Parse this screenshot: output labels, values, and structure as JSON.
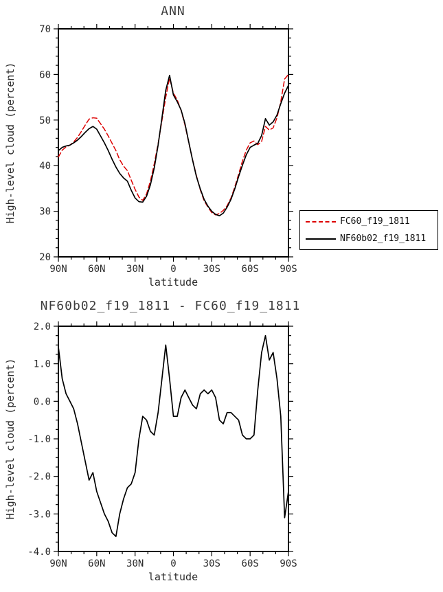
{
  "colors": {
    "frame": "#000000",
    "title_text": "#3d3d3d",
    "tick_text": "#2b2b2b",
    "series_red": "#dd0000",
    "series_black": "#000000"
  },
  "chart_data": [
    {
      "type": "line",
      "title": "ANN",
      "xlabel": "latitude",
      "ylabel": "High-level cloud (percent)",
      "xlim": [
        90,
        -90
      ],
      "ylim": [
        20,
        70
      ],
      "x_major_ticks": {
        "values": [
          90,
          60,
          30,
          0,
          -30,
          -60,
          -90
        ],
        "labels": [
          "90N",
          "60N",
          "30N",
          "0",
          "30S",
          "60S",
          "90S"
        ]
      },
      "x_minor_step": 10,
      "y_major_ticks": {
        "values": [
          20,
          30,
          40,
          50,
          60,
          70
        ],
        "labels": [
          "20",
          "30",
          "40",
          "50",
          "60",
          "70"
        ]
      },
      "y_minor_step": 2,
      "x": [
        90,
        87,
        84,
        81,
        78,
        75,
        72,
        69,
        66,
        63,
        60,
        57,
        54,
        51,
        48,
        45,
        42,
        39,
        36,
        33,
        30,
        27,
        24,
        21,
        18,
        15,
        12,
        9,
        6,
        3,
        0,
        -3,
        -6,
        -9,
        -12,
        -15,
        -18,
        -21,
        -24,
        -27,
        -30,
        -33,
        -36,
        -39,
        -42,
        -45,
        -48,
        -51,
        -54,
        -57,
        -60,
        -63,
        -66,
        -69,
        -72,
        -75,
        -78,
        -81,
        -84,
        -87,
        -90
      ],
      "series": [
        {
          "name": "FC60_f19_1811",
          "color": "#dd0000",
          "dash": true,
          "values": [
            41.9,
            43.4,
            44.1,
            44.5,
            45.2,
            46.2,
            47.5,
            48.9,
            50.2,
            50.5,
            50.4,
            49.2,
            48.0,
            46.5,
            44.9,
            43.3,
            41.3,
            39.9,
            38.9,
            36.8,
            34.8,
            33.1,
            32.4,
            33.8,
            36.6,
            40.4,
            44.8,
            49.9,
            55.0,
            59.2,
            55.9,
            54.4,
            52.1,
            48.9,
            45.1,
            41.3,
            37.8,
            34.7,
            32.3,
            30.9,
            29.7,
            29.2,
            29.5,
            30.2,
            31.2,
            32.9,
            35.3,
            38.1,
            41.0,
            43.4,
            45.0,
            45.4,
            44.6,
            45.3,
            48.6,
            47.8,
            48.3,
            50.5,
            54.0,
            59.0,
            60.0
          ]
        },
        {
          "name": "NF60b02_f19_1811",
          "color": "#000000",
          "dash": false,
          "values": [
            43.3,
            44.0,
            44.3,
            44.5,
            45.0,
            45.6,
            46.4,
            47.3,
            48.1,
            48.6,
            48.0,
            46.5,
            45.0,
            43.3,
            41.4,
            39.7,
            38.3,
            37.3,
            36.6,
            34.6,
            32.9,
            32.1,
            32.0,
            33.3,
            35.8,
            39.5,
            44.5,
            50.5,
            56.5,
            59.8,
            55.5,
            54.0,
            52.2,
            49.2,
            45.2,
            41.2,
            37.6,
            34.9,
            32.6,
            31.1,
            30.0,
            29.3,
            29.0,
            29.6,
            30.9,
            32.6,
            34.9,
            37.6,
            40.1,
            42.4,
            44.0,
            44.5,
            44.9,
            46.6,
            50.3,
            48.9,
            49.6,
            51.1,
            53.6,
            55.9,
            57.6
          ]
        }
      ],
      "legend": {
        "position": "outside-right-bottom",
        "entries": [
          {
            "label": "FC60_f19_1811",
            "color": "#dd0000",
            "style": "dashed"
          },
          {
            "label": "NF60b02_f19_1811",
            "color": "#000000",
            "style": "solid"
          }
        ]
      }
    },
    {
      "type": "line",
      "title": "NF60b02_f19_1811 - FC60_f19_1811",
      "xlabel": "latitude",
      "ylabel": "High-level cloud (percent)",
      "xlim": [
        90,
        -90
      ],
      "ylim": [
        -4,
        2
      ],
      "x_major_ticks": {
        "values": [
          90,
          60,
          30,
          0,
          -30,
          -60,
          -90
        ],
        "labels": [
          "90N",
          "60N",
          "30N",
          "0",
          "30S",
          "60S",
          "90S"
        ]
      },
      "x_minor_step": 10,
      "y_major_ticks": {
        "values": [
          -4,
          -3,
          -2,
          -1,
          0,
          1,
          2
        ],
        "labels": [
          "-4.0",
          "-3.0",
          "-2.0",
          "-1.0",
          "0.0",
          "1.0",
          "2.0"
        ]
      },
      "y_minor_step": 0.25,
      "x": [
        90,
        87,
        84,
        81,
        78,
        75,
        72,
        69,
        66,
        63,
        60,
        57,
        54,
        51,
        48,
        45,
        42,
        39,
        36,
        33,
        30,
        27,
        24,
        21,
        18,
        15,
        12,
        9,
        6,
        3,
        0,
        -3,
        -6,
        -9,
        -12,
        -15,
        -18,
        -21,
        -24,
        -27,
        -30,
        -33,
        -36,
        -39,
        -42,
        -45,
        -48,
        -51,
        -54,
        -57,
        -60,
        -63,
        -66,
        -69,
        -72,
        -75,
        -78,
        -81,
        -84,
        -87,
        -90
      ],
      "series": [
        {
          "name": "NF60b02_f19_1811 - FC60_f19_1811",
          "color": "#000000",
          "dash": false,
          "values": [
            1.45,
            0.6,
            0.2,
            0.0,
            -0.2,
            -0.6,
            -1.1,
            -1.6,
            -2.1,
            -1.9,
            -2.4,
            -2.7,
            -3.0,
            -3.2,
            -3.5,
            -3.6,
            -3.0,
            -2.6,
            -2.3,
            -2.2,
            -1.9,
            -1.0,
            -0.4,
            -0.5,
            -0.8,
            -0.9,
            -0.3,
            0.6,
            1.5,
            0.6,
            -0.4,
            -0.4,
            0.1,
            0.3,
            0.1,
            -0.1,
            -0.2,
            0.2,
            0.3,
            0.2,
            0.3,
            0.1,
            -0.5,
            -0.6,
            -0.3,
            -0.3,
            -0.4,
            -0.5,
            -0.9,
            -1.0,
            -1.0,
            -0.9,
            0.3,
            1.3,
            1.75,
            1.1,
            1.3,
            0.6,
            -0.4,
            -3.1,
            -2.4
          ]
        }
      ]
    }
  ]
}
